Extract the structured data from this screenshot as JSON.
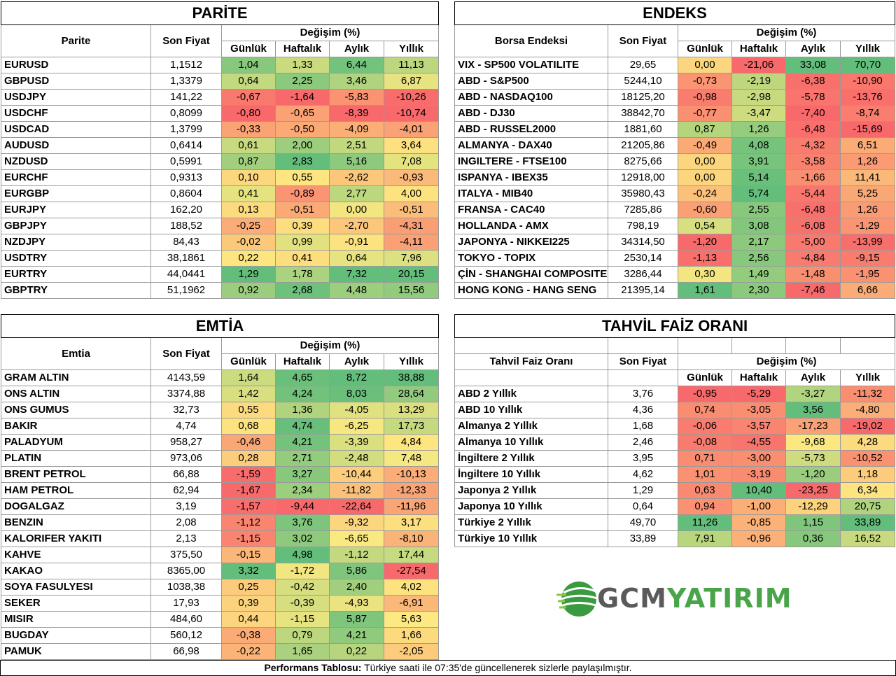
{
  "colors": {
    "red": "#f8696b",
    "orange": "#fba677",
    "yellow": "#fde981",
    "lightgreen": "#c4df81",
    "green": "#63be7b"
  },
  "parite": {
    "title": "PARİTE",
    "headers": {
      "name": "Parite",
      "price": "Son Fiyat",
      "change": "Değişim (%)",
      "d": "Günlük",
      "w": "Haftalık",
      "m": "Aylık",
      "y": "Yıllık"
    },
    "rows": [
      {
        "name": "EURUSD",
        "price": "1,1512",
        "d": "1,04",
        "w": "1,33",
        "m": "6,44",
        "y": "11,13"
      },
      {
        "name": "GBPUSD",
        "price": "1,3379",
        "d": "0,64",
        "w": "2,25",
        "m": "3,46",
        "y": "6,87"
      },
      {
        "name": "USDJPY",
        "price": "141,22",
        "d": "-0,67",
        "w": "-1,64",
        "m": "-5,83",
        "y": "-10,26"
      },
      {
        "name": "USDCHF",
        "price": "0,8099",
        "d": "-0,80",
        "w": "-0,65",
        "m": "-8,39",
        "y": "-10,74"
      },
      {
        "name": "USDCAD",
        "price": "1,3799",
        "d": "-0,33",
        "w": "-0,50",
        "m": "-4,09",
        "y": "-4,01"
      },
      {
        "name": "AUDUSD",
        "price": "0,6414",
        "d": "0,61",
        "w": "2,00",
        "m": "2,51",
        "y": "3,64"
      },
      {
        "name": "NZDUSD",
        "price": "0,5991",
        "d": "0,87",
        "w": "2,83",
        "m": "5,16",
        "y": "7,08"
      },
      {
        "name": "EURCHF",
        "price": "0,9313",
        "d": "0,10",
        "w": "0,55",
        "m": "-2,62",
        "y": "-0,93"
      },
      {
        "name": "EURGBP",
        "price": "0,8604",
        "d": "0,41",
        "w": "-0,89",
        "m": "2,77",
        "y": "4,00"
      },
      {
        "name": "EURJPY",
        "price": "162,20",
        "d": "0,13",
        "w": "-0,51",
        "m": "0,00",
        "y": "-0,51"
      },
      {
        "name": "GBPJPY",
        "price": "188,52",
        "d": "-0,25",
        "w": "0,39",
        "m": "-2,70",
        "y": "-4,31"
      },
      {
        "name": "NZDJPY",
        "price": "84,43",
        "d": "-0,02",
        "w": "0,99",
        "m": "-0,91",
        "y": "-4,11"
      },
      {
        "name": "USDTRY",
        "price": "38,1861",
        "d": "0,22",
        "w": "0,41",
        "m": "0,64",
        "y": "7,96"
      },
      {
        "name": "EURTRY",
        "price": "44,0441",
        "d": "1,29",
        "w": "1,78",
        "m": "7,32",
        "y": "20,15"
      },
      {
        "name": "GBPTRY",
        "price": "51,1962",
        "d": "0,92",
        "w": "2,68",
        "m": "4,48",
        "y": "15,56"
      }
    ]
  },
  "endeks": {
    "title": "ENDEKS",
    "headers": {
      "name": "Borsa Endeksi",
      "price": "Son Fiyat",
      "change": "Değişim (%)",
      "d": "Günlük",
      "w": "Haftalık",
      "m": "Aylık",
      "y": "Yıllık"
    },
    "rows": [
      {
        "name": "VIX  - SP500 VOLATILITE",
        "price": "29,65",
        "d": "0,00",
        "w": "-21,06",
        "m": "33,08",
        "y": "70,70"
      },
      {
        "name": "ABD - S&P500",
        "price": "5244,10",
        "d": "-0,73",
        "w": "-2,19",
        "m": "-6,38",
        "y": "-10,90"
      },
      {
        "name": "ABD - NASDAQ100",
        "price": "18125,20",
        "d": "-0,98",
        "w": "-2,98",
        "m": "-5,78",
        "y": "-13,76"
      },
      {
        "name": "ABD - DJ30",
        "price": "38842,70",
        "d": "-0,77",
        "w": "-3,47",
        "m": "-7,40",
        "y": "-8,74"
      },
      {
        "name": "ABD - RUSSEL2000",
        "price": "1881,60",
        "d": "0,87",
        "w": "1,26",
        "m": "-6,48",
        "y": "-15,69"
      },
      {
        "name": "ALMANYA - DAX40",
        "price": "21205,86",
        "d": "-0,49",
        "w": "4,08",
        "m": "-4,32",
        "y": "6,51"
      },
      {
        "name": "INGILTERE - FTSE100",
        "price": "8275,66",
        "d": "0,00",
        "w": "3,91",
        "m": "-3,58",
        "y": "1,26"
      },
      {
        "name": "ISPANYA - IBEX35",
        "price": "12918,00",
        "d": "0,00",
        "w": "5,14",
        "m": "-1,66",
        "y": "11,41"
      },
      {
        "name": "ITALYA - MIB40",
        "price": "35980,43",
        "d": "-0,24",
        "w": "5,74",
        "m": "-5,44",
        "y": "5,25"
      },
      {
        "name": "FRANSA - CAC40",
        "price": "7285,86",
        "d": "-0,60",
        "w": "2,55",
        "m": "-6,48",
        "y": "1,26"
      },
      {
        "name": "HOLLANDA - AMX",
        "price": "798,19",
        "d": "0,54",
        "w": "3,08",
        "m": "-6,08",
        "y": "-1,29"
      },
      {
        "name": "JAPONYA - NIKKEI225",
        "price": "34314,50",
        "d": "-1,20",
        "w": "2,17",
        "m": "-5,00",
        "y": "-13,99"
      },
      {
        "name": "TOKYO - TOPIX",
        "price": "2530,14",
        "d": "-1,13",
        "w": "2,56",
        "m": "-4,84",
        "y": "-9,15"
      },
      {
        "name": "ÇİN - SHANGHAI COMPOSITE",
        "price": "3286,44",
        "d": "0,30",
        "w": "1,49",
        "m": "-1,48",
        "y": "-1,95"
      },
      {
        "name": "HONG KONG - HANG SENG",
        "price": "21395,14",
        "d": "1,61",
        "w": "2,30",
        "m": "-7,46",
        "y": "6,66"
      }
    ]
  },
  "emtia": {
    "title": "EMTİA",
    "headers": {
      "name": "Emtia",
      "price": "Son Fiyat",
      "change": "Değişim (%)",
      "d": "Günlük",
      "w": "Haftalık",
      "m": "Aylık",
      "y": "Yıllık"
    },
    "rows": [
      {
        "name": "GRAM ALTIN",
        "price": "4143,59",
        "d": "1,64",
        "w": "4,65",
        "m": "8,72",
        "y": "38,88"
      },
      {
        "name": "ONS ALTIN",
        "price": "3374,88",
        "d": "1,42",
        "w": "4,24",
        "m": "8,03",
        "y": "28,64"
      },
      {
        "name": "ONS GUMUS",
        "price": "32,73",
        "d": "0,55",
        "w": "1,36",
        "m": "-4,05",
        "y": "13,29"
      },
      {
        "name": "BAKIR",
        "price": "4,74",
        "d": "0,68",
        "w": "4,74",
        "m": "-6,25",
        "y": "17,73"
      },
      {
        "name": "PALADYUM",
        "price": "958,27",
        "d": "-0,46",
        "w": "4,21",
        "m": "-3,39",
        "y": "4,84"
      },
      {
        "name": "PLATIN",
        "price": "973,06",
        "d": "0,28",
        "w": "2,71",
        "m": "-2,48",
        "y": "7,48"
      },
      {
        "name": "BRENT PETROL",
        "price": "66,88",
        "d": "-1,59",
        "w": "3,27",
        "m": "-10,44",
        "y": "-10,13"
      },
      {
        "name": "HAM PETROL",
        "price": "62,94",
        "d": "-1,67",
        "w": "2,34",
        "m": "-11,82",
        "y": "-12,33"
      },
      {
        "name": "DOGALGAZ",
        "price": "3,19",
        "d": "-1,57",
        "w": "-9,44",
        "m": "-22,64",
        "y": "-11,96"
      },
      {
        "name": "BENZIN",
        "price": "2,08",
        "d": "-1,12",
        "w": "3,76",
        "m": "-9,32",
        "y": "3,17"
      },
      {
        "name": "KALORIFER YAKITI",
        "price": "2,13",
        "d": "-1,15",
        "w": "3,02",
        "m": "-6,65",
        "y": "-8,10"
      },
      {
        "name": "KAHVE",
        "price": "375,50",
        "d": "-0,15",
        "w": "4,98",
        "m": "-1,12",
        "y": "17,44"
      },
      {
        "name": "KAKAO",
        "price": "8365,00",
        "d": "3,32",
        "w": "-1,72",
        "m": "5,86",
        "y": "-27,54"
      },
      {
        "name": "SOYA FASULYESI",
        "price": "1038,38",
        "d": "0,25",
        "w": "-0,42",
        "m": "2,40",
        "y": "4,02"
      },
      {
        "name": "SEKER",
        "price": "17,93",
        "d": "0,39",
        "w": "-0,39",
        "m": "-4,93",
        "y": "-6,91"
      },
      {
        "name": "MISIR",
        "price": "484,60",
        "d": "0,44",
        "w": "-1,15",
        "m": "5,87",
        "y": "5,63"
      },
      {
        "name": "BUGDAY",
        "price": "560,12",
        "d": "-0,38",
        "w": "0,79",
        "m": "4,21",
        "y": "1,66"
      },
      {
        "name": "PAMUK",
        "price": "66,98",
        "d": "-0,22",
        "w": "1,65",
        "m": "0,22",
        "y": "-2,05"
      }
    ]
  },
  "tahvil": {
    "title": "TAHVİL FAİZ ORANI",
    "headers": {
      "name": "Tahvil Faiz Oranı",
      "price": "Son Fiyat",
      "change": "Değişim (%)",
      "d": "Günlük",
      "w": "Haftalık",
      "m": "Aylık",
      "y": "Yıllık"
    },
    "rows": [
      {
        "name": "ABD 2 Yıllık",
        "price": "3,76",
        "d": "-0,95",
        "w": "-5,29",
        "m": "-3,27",
        "y": "-11,32"
      },
      {
        "name": "ABD 10 Yıllık",
        "price": "4,36",
        "d": "0,74",
        "w": "-3,05",
        "m": "3,56",
        "y": "-4,80"
      },
      {
        "name": "Almanya 2 Yıllık",
        "price": "1,68",
        "d": "-0,06",
        "w": "-3,57",
        "m": "-17,23",
        "y": "-19,02"
      },
      {
        "name": "Almanya 10 Yıllık",
        "price": "2,46",
        "d": "-0,08",
        "w": "-4,55",
        "m": "-9,68",
        "y": "4,28"
      },
      {
        "name": "İngiltere 2 Yıllık",
        "price": "3,95",
        "d": "0,71",
        "w": "-3,00",
        "m": "-5,73",
        "y": "-10,52"
      },
      {
        "name": "İngiltere 10 Yıllık",
        "price": "4,62",
        "d": "1,01",
        "w": "-3,19",
        "m": "-1,20",
        "y": "1,18"
      },
      {
        "name": "Japonya 2 Yıllık",
        "price": "1,29",
        "d": "0,63",
        "w": "10,40",
        "m": "-23,25",
        "y": "6,34"
      },
      {
        "name": "Japonya 10 Yıllık",
        "price": "0,64",
        "d": "0,94",
        "w": "-1,00",
        "m": "-12,29",
        "y": "20,75"
      },
      {
        "name": "Türkiye 2 Yıllık",
        "price": "49,70",
        "d": "11,26",
        "w": "-0,85",
        "m": "1,15",
        "y": "33,89"
      },
      {
        "name": "Türkiye 10 Yıllık",
        "price": "33,89",
        "d": "7,91",
        "w": "-0,96",
        "m": "0,36",
        "y": "16,52"
      }
    ]
  },
  "logo": {
    "text": "GCMYATIRIM",
    "part1": "GCM",
    "part2": "YATIRIM"
  },
  "footer": {
    "bold": "Performans Tablosu:",
    "text": " Türkiye saati ile 07:35'de güncellenerek sizlerle paylaşılmıştır."
  }
}
